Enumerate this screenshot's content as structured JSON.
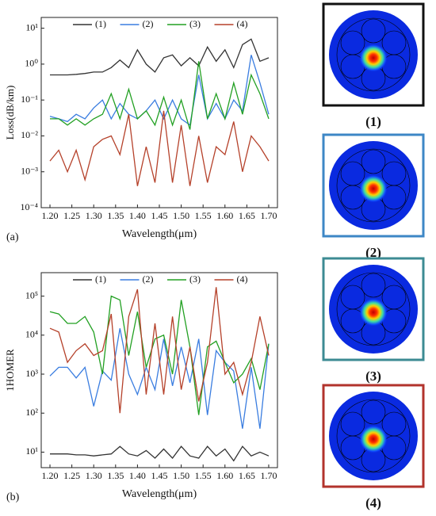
{
  "chart_data": [
    {
      "type": "line",
      "panel_label": "(a)",
      "ylabel": "Loss(dB/km)",
      "xlabel": "Wavelength(μm)",
      "log_y": true,
      "x": [
        1.2,
        1.22,
        1.24,
        1.26,
        1.28,
        1.3,
        1.32,
        1.34,
        1.36,
        1.38,
        1.4,
        1.42,
        1.44,
        1.46,
        1.48,
        1.5,
        1.52,
        1.54,
        1.56,
        1.58,
        1.6,
        1.62,
        1.64,
        1.66,
        1.68,
        1.7
      ],
      "xlim": [
        1.18,
        1.72
      ],
      "xticks": [
        {
          "value": 1.2,
          "label": "1.20"
        },
        1.25,
        {
          "value": 1.3,
          "label": "1.30"
        },
        1.35,
        {
          "value": 1.4,
          "label": "1.40"
        },
        1.45,
        {
          "value": 1.5,
          "label": "1.50"
        },
        1.55,
        {
          "value": 1.6,
          "label": "1.60"
        },
        1.65,
        {
          "value": 1.7,
          "label": "1.70"
        }
      ],
      "ylim": [
        0.0001,
        20
      ],
      "yticks": [
        {
          "value": 0.0001,
          "label": "10⁻⁴"
        },
        {
          "value": 0.001,
          "label": "10⁻³"
        },
        {
          "value": 0.01,
          "label": "10⁻²"
        },
        {
          "value": 0.1,
          "label": "10⁻¹"
        },
        {
          "value": 1,
          "label": "10⁰"
        },
        {
          "value": 10,
          "label": "10¹"
        }
      ],
      "series": [
        {
          "name": "(1)",
          "color": "#333333",
          "values": [
            0.5,
            0.5,
            0.5,
            0.52,
            0.55,
            0.6,
            0.6,
            0.8,
            1.3,
            0.8,
            2.5,
            1.0,
            0.6,
            1.5,
            1.8,
            0.9,
            1.5,
            0.9,
            3.0,
            1.2,
            2.5,
            0.8,
            3.5,
            5,
            1.2,
            1.5
          ]
        },
        {
          "name": "(2)",
          "color": "#3a7de0",
          "values": [
            0.035,
            0.03,
            0.025,
            0.04,
            0.03,
            0.06,
            0.1,
            0.03,
            0.08,
            0.04,
            0.03,
            0.05,
            0.1,
            0.03,
            0.1,
            0.03,
            0.02,
            0.5,
            0.03,
            0.08,
            0.03,
            0.1,
            0.05,
            1.8,
            0.3,
            0.04
          ]
        },
        {
          "name": "(3)",
          "color": "#22a022",
          "values": [
            0.03,
            0.03,
            0.02,
            0.03,
            0.02,
            0.03,
            0.04,
            0.15,
            0.03,
            0.2,
            0.03,
            0.05,
            0.02,
            0.12,
            0.02,
            0.1,
            0.015,
            1.2,
            0.03,
            0.15,
            0.03,
            0.3,
            0.04,
            0.5,
            0.15,
            0.03
          ]
        },
        {
          "name": "(4)",
          "color": "#b5412a",
          "values": [
            0.002,
            0.004,
            0.001,
            0.004,
            0.0006,
            0.005,
            0.008,
            0.01,
            0.003,
            0.04,
            0.0004,
            0.005,
            0.0005,
            0.05,
            0.0005,
            0.02,
            0.0004,
            0.01,
            0.0005,
            0.005,
            0.003,
            0.025,
            0.001,
            0.01,
            0.005,
            0.002
          ]
        }
      ]
    },
    {
      "type": "line",
      "panel_label": "(b)",
      "ylabel": "1HOMER",
      "xlabel": "Wavelength(μm)",
      "log_y": true,
      "x": [
        1.2,
        1.22,
        1.24,
        1.26,
        1.28,
        1.3,
        1.32,
        1.34,
        1.36,
        1.38,
        1.4,
        1.42,
        1.44,
        1.46,
        1.48,
        1.5,
        1.52,
        1.54,
        1.56,
        1.58,
        1.6,
        1.62,
        1.64,
        1.66,
        1.68,
        1.7
      ],
      "xlim": [
        1.18,
        1.72
      ],
      "xticks": [
        {
          "value": 1.2,
          "label": "1.20"
        },
        1.25,
        {
          "value": 1.3,
          "label": "1.30"
        },
        1.35,
        {
          "value": 1.4,
          "label": "1.40"
        },
        1.45,
        {
          "value": 1.5,
          "label": "1.50"
        },
        1.55,
        {
          "value": 1.6,
          "label": "1.60"
        },
        1.65,
        {
          "value": 1.7,
          "label": "1.70"
        }
      ],
      "ylim": [
        4,
        400000
      ],
      "yticks": [
        {
          "value": 10,
          "label": "10¹"
        },
        {
          "value": 100,
          "label": "10²"
        },
        {
          "value": 1000,
          "label": "10³"
        },
        {
          "value": 10000,
          "label": "10⁴"
        },
        {
          "value": 100000,
          "label": "10⁵"
        }
      ],
      "series": [
        {
          "name": "(1)",
          "color": "#333333",
          "values": [
            9,
            9,
            9,
            8.5,
            8.5,
            8,
            8.5,
            9,
            14,
            9,
            8,
            11,
            7,
            12,
            7,
            14,
            8,
            7,
            14,
            8,
            12,
            6,
            14,
            8,
            10,
            8
          ]
        },
        {
          "name": "(2)",
          "color": "#3a7de0",
          "values": [
            900,
            1500,
            1500,
            800,
            1500,
            150,
            1200,
            700,
            15000,
            1000,
            300,
            1500,
            400,
            8000,
            500,
            5000,
            600,
            8000,
            90,
            4000,
            2000,
            1200,
            40,
            1500,
            40,
            6000
          ]
        },
        {
          "name": "(3)",
          "color": "#22a022",
          "values": [
            40000,
            35000,
            20000,
            20000,
            30000,
            12000,
            1000,
            100000,
            80000,
            3000,
            40000,
            1500,
            8000,
            10000,
            1000,
            80000,
            5000,
            90,
            5000,
            7000,
            2000,
            600,
            1000,
            2500,
            400,
            6000
          ]
        },
        {
          "name": "(4)",
          "color": "#b5412a",
          "values": [
            15000,
            12000,
            2000,
            4000,
            6000,
            3000,
            4000,
            35000,
            100,
            30000,
            150000,
            300,
            20000,
            300,
            30000,
            400,
            5000,
            200,
            2000,
            170000,
            1000,
            2000,
            300,
            2000,
            30000,
            3000
          ]
        }
      ]
    }
  ],
  "mode_panels": [
    {
      "label": "(1)",
      "border": "#111111"
    },
    {
      "label": "(2)",
      "border": "#3d87c6"
    },
    {
      "label": "(3)",
      "border": "#3c8b93"
    },
    {
      "label": "(4)",
      "border": "#b2332c"
    }
  ]
}
